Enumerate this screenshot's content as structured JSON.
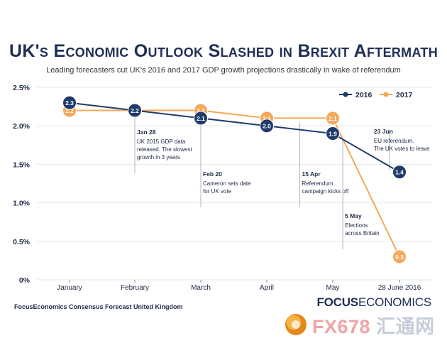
{
  "title": "UK's Economic Outlook Slashed in Brexit Aftermath",
  "subtitle": "Leading forecasters cut UK's 2016 and 2017 GDP growth projections drastically in wake of referendum",
  "source": "FocusEconomics Consensus Forecast United Kingdom",
  "brand": {
    "bold": "FOCUS",
    "light": "ECONOMICS"
  },
  "watermark": {
    "text_a": "FX678",
    "text_b": "汇通网"
  },
  "chart_data": {
    "type": "line",
    "categories": [
      "January",
      "February",
      "March",
      "April",
      "May",
      "28 June 2016"
    ],
    "y_ticks": [
      "0%",
      "0.5%",
      "1.0%",
      "1.5%",
      "2.0%",
      "2.5%"
    ],
    "ylim": [
      0,
      2.5
    ],
    "legend_position": "top-right",
    "series": [
      {
        "name": "2016",
        "color": "#1f3a6b",
        "values": [
          2.3,
          2.2,
          2.1,
          2.0,
          1.9,
          1.4
        ],
        "labels": [
          "2.3",
          "2.2",
          "2.1",
          "2.0",
          "1.9",
          "1.4"
        ]
      },
      {
        "name": "2017",
        "color": "#f5a75a",
        "values": [
          2.2,
          2.2,
          2.2,
          2.1,
          2.1,
          0.3
        ],
        "labels": [
          "2.2",
          "2.2",
          "2.2",
          "2.1",
          "2.1",
          "0.3"
        ]
      }
    ],
    "annotations": [
      {
        "x": 1.0,
        "y": 2.2,
        "date": "Jan 28",
        "lines": [
          "UK 2015 GDP data",
          "released. The slowest",
          "growth in 3 years"
        ],
        "anchor": "below"
      },
      {
        "x": 2.0,
        "y": 2.1,
        "date": "Feb 20",
        "lines": [
          "Cameron sets date",
          "for UK vote"
        ],
        "anchor": "below"
      },
      {
        "x": 3.5,
        "y": 2.1,
        "date": "15 Apr",
        "lines": [
          "Referendum",
          "campaign kicks off"
        ],
        "anchor": "below"
      },
      {
        "x": 4.15,
        "y": 1.9,
        "date": "5 May",
        "lines": [
          "Elections",
          "across Britain"
        ],
        "anchor": "below"
      },
      {
        "x": 4.85,
        "y": 1.4,
        "date": "23 Jun",
        "lines": [
          "EU referendum.",
          "The UK votes to leave"
        ],
        "anchor": "above"
      }
    ]
  }
}
